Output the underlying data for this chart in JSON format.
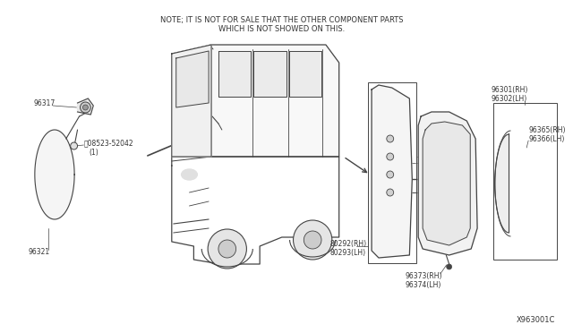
{
  "bg_color": "#ffffff",
  "note_line1": "NOTE; IT IS NOT FOR SALE THAT THE OTHER COMPONENT PARTS",
  "note_line2": "WHICH IS NOT SHOWED ON THIS.",
  "diagram_id": "X963001C",
  "ec": "#444444",
  "lc": "#555555",
  "label_color": "#333333",
  "label_fs": 5.5,
  "note_fs": 6.0
}
